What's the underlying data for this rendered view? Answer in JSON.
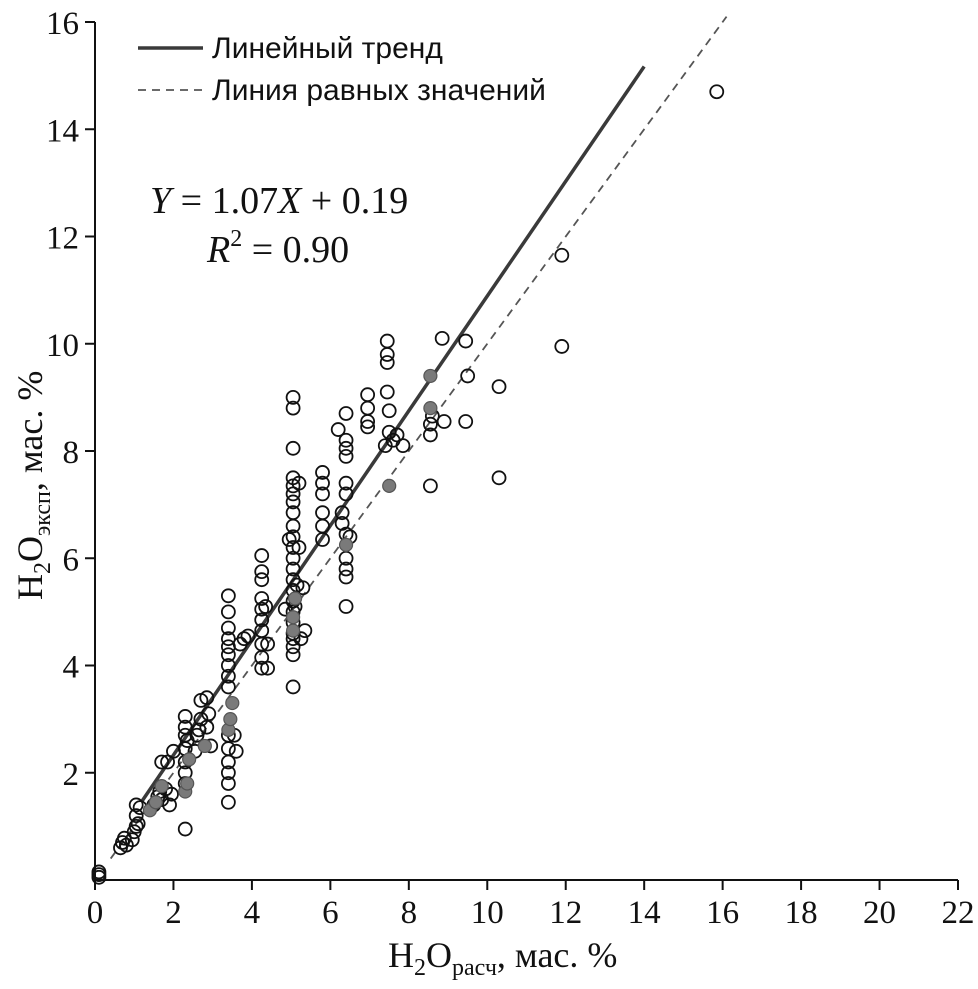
{
  "chart_data": {
    "type": "scatter",
    "xlabel": {
      "main": "H",
      "sub1": "2",
      "mid": "O",
      "sub2": "расч",
      "tail": ", мас. %"
    },
    "ylabel": {
      "main": "H",
      "sub1": "2",
      "mid": "O",
      "sub2": "эксп",
      "tail": ", мас. %"
    },
    "xlim": [
      0,
      22
    ],
    "ylim": [
      0,
      16
    ],
    "x_ticks": [
      0,
      2,
      4,
      6,
      8,
      10,
      12,
      14,
      16,
      18,
      20,
      22
    ],
    "y_ticks": [
      2,
      4,
      6,
      8,
      10,
      12,
      14,
      16
    ],
    "grid": false,
    "legend": {
      "placement": "top-left",
      "items": [
        {
          "label": "Линейный тренд",
          "style": "solid",
          "color": "#3a3a3a"
        },
        {
          "label": "Линия равных значений",
          "style": "dashed",
          "color": "#555555"
        }
      ]
    },
    "annotation": {
      "equation": {
        "y": "Y",
        "eq1": " = 1.07",
        "x": "X",
        "eq2": " + 0.19"
      },
      "r2": {
        "r": "R",
        "sup": "2",
        "eq": " = 0.90"
      }
    },
    "trend_line": {
      "slope": 1.07,
      "intercept": 0.19,
      "x_range": [
        1.2,
        14.0
      ]
    },
    "equal_line": {
      "x_range": [
        0.4,
        16.1
      ]
    },
    "series": [
      {
        "kind": "open",
        "color": "#111111",
        "points": [
          [
            0.1,
            0.05
          ],
          [
            0.1,
            0.1
          ],
          [
            0.1,
            0.15
          ],
          [
            0.65,
            0.6
          ],
          [
            0.7,
            0.7
          ],
          [
            0.75,
            0.78
          ],
          [
            0.8,
            0.65
          ],
          [
            0.95,
            0.75
          ],
          [
            1.0,
            0.9
          ],
          [
            1.05,
            1.0
          ],
          [
            1.05,
            1.2
          ],
          [
            1.05,
            1.4
          ],
          [
            1.1,
            1.05
          ],
          [
            1.15,
            1.35
          ],
          [
            1.5,
            1.4
          ],
          [
            1.6,
            1.55
          ],
          [
            1.65,
            1.65
          ],
          [
            1.7,
            1.5
          ],
          [
            1.7,
            2.2
          ],
          [
            1.8,
            1.7
          ],
          [
            1.85,
            2.2
          ],
          [
            1.9,
            1.4
          ],
          [
            1.95,
            1.6
          ],
          [
            2.0,
            2.4
          ],
          [
            2.3,
            0.95
          ],
          [
            2.3,
            1.8
          ],
          [
            2.3,
            2.0
          ],
          [
            2.3,
            2.2
          ],
          [
            2.3,
            2.45
          ],
          [
            2.3,
            2.7
          ],
          [
            2.3,
            2.85
          ],
          [
            2.3,
            3.05
          ],
          [
            2.35,
            2.6
          ],
          [
            2.55,
            2.4
          ],
          [
            2.6,
            2.7
          ],
          [
            2.65,
            2.8
          ],
          [
            2.7,
            3.0
          ],
          [
            2.7,
            3.35
          ],
          [
            2.85,
            3.4
          ],
          [
            2.85,
            2.85
          ],
          [
            2.9,
            3.1
          ],
          [
            2.95,
            2.5
          ],
          [
            3.4,
            1.45
          ],
          [
            3.4,
            1.8
          ],
          [
            3.4,
            2.0
          ],
          [
            3.4,
            2.2
          ],
          [
            3.4,
            2.45
          ],
          [
            3.4,
            2.7
          ],
          [
            3.4,
            3.6
          ],
          [
            3.4,
            3.8
          ],
          [
            3.4,
            4.0
          ],
          [
            3.4,
            4.2
          ],
          [
            3.4,
            4.35
          ],
          [
            3.4,
            4.5
          ],
          [
            3.4,
            4.7
          ],
          [
            3.4,
            5.0
          ],
          [
            3.4,
            5.3
          ],
          [
            3.55,
            2.7
          ],
          [
            3.6,
            2.4
          ],
          [
            3.7,
            4.4
          ],
          [
            3.8,
            4.5
          ],
          [
            3.9,
            4.55
          ],
          [
            4.25,
            3.95
          ],
          [
            4.25,
            4.15
          ],
          [
            4.25,
            4.4
          ],
          [
            4.25,
            4.65
          ],
          [
            4.25,
            4.85
          ],
          [
            4.25,
            5.05
          ],
          [
            4.25,
            5.25
          ],
          [
            4.25,
            5.6
          ],
          [
            4.25,
            5.75
          ],
          [
            4.25,
            6.05
          ],
          [
            4.4,
            3.95
          ],
          [
            4.4,
            4.4
          ],
          [
            4.35,
            5.1
          ],
          [
            4.85,
            5.05
          ],
          [
            4.95,
            6.35
          ],
          [
            5.05,
            3.6
          ],
          [
            5.05,
            4.2
          ],
          [
            5.05,
            4.35
          ],
          [
            5.05,
            4.5
          ],
          [
            5.05,
            4.6
          ],
          [
            5.05,
            4.8
          ],
          [
            5.05,
            5.0
          ],
          [
            5.05,
            5.2
          ],
          [
            5.05,
            5.4
          ],
          [
            5.05,
            5.6
          ],
          [
            5.05,
            5.8
          ],
          [
            5.05,
            6.0
          ],
          [
            5.05,
            6.2
          ],
          [
            5.05,
            6.4
          ],
          [
            5.05,
            6.6
          ],
          [
            5.05,
            6.85
          ],
          [
            5.05,
            7.05
          ],
          [
            5.05,
            7.2
          ],
          [
            5.05,
            7.35
          ],
          [
            5.05,
            7.5
          ],
          [
            5.05,
            8.05
          ],
          [
            5.05,
            8.8
          ],
          [
            5.05,
            9.0
          ],
          [
            5.1,
            5.1
          ],
          [
            5.15,
            5.5
          ],
          [
            5.2,
            6.2
          ],
          [
            5.2,
            7.4
          ],
          [
            5.25,
            4.5
          ],
          [
            5.3,
            5.45
          ],
          [
            5.35,
            4.65
          ],
          [
            5.8,
            6.35
          ],
          [
            5.8,
            6.6
          ],
          [
            5.8,
            6.85
          ],
          [
            5.8,
            7.2
          ],
          [
            5.8,
            7.4
          ],
          [
            5.8,
            7.6
          ],
          [
            6.3,
            6.65
          ],
          [
            6.3,
            6.85
          ],
          [
            6.2,
            8.4
          ],
          [
            6.4,
            5.1
          ],
          [
            6.4,
            5.65
          ],
          [
            6.4,
            5.8
          ],
          [
            6.4,
            6.0
          ],
          [
            6.4,
            6.45
          ],
          [
            6.4,
            7.2
          ],
          [
            6.4,
            7.4
          ],
          [
            6.4,
            7.9
          ],
          [
            6.4,
            8.05
          ],
          [
            6.4,
            8.2
          ],
          [
            6.4,
            8.7
          ],
          [
            6.5,
            6.4
          ],
          [
            6.95,
            8.45
          ],
          [
            6.95,
            8.55
          ],
          [
            6.95,
            8.8
          ],
          [
            6.95,
            9.05
          ],
          [
            7.4,
            8.1
          ],
          [
            7.45,
            9.1
          ],
          [
            7.45,
            9.65
          ],
          [
            7.45,
            9.8
          ],
          [
            7.45,
            10.05
          ],
          [
            7.5,
            8.35
          ],
          [
            7.5,
            8.75
          ],
          [
            7.6,
            8.2
          ],
          [
            7.7,
            8.3
          ],
          [
            7.85,
            8.1
          ],
          [
            8.55,
            7.35
          ],
          [
            8.55,
            8.3
          ],
          [
            8.55,
            8.5
          ],
          [
            8.6,
            8.65
          ],
          [
            8.85,
            10.1
          ],
          [
            8.9,
            8.55
          ],
          [
            9.45,
            8.55
          ],
          [
            9.45,
            10.05
          ],
          [
            9.5,
            9.4
          ],
          [
            10.3,
            7.5
          ],
          [
            10.3,
            9.2
          ],
          [
            11.9,
            9.95
          ],
          [
            11.9,
            11.65
          ],
          [
            15.85,
            14.7
          ]
        ]
      },
      {
        "kind": "filled",
        "color": "#7a7a7a",
        "points": [
          [
            1.4,
            1.3
          ],
          [
            1.55,
            1.45
          ],
          [
            1.7,
            1.75
          ],
          [
            2.3,
            1.65
          ],
          [
            2.35,
            1.8
          ],
          [
            2.4,
            2.25
          ],
          [
            2.8,
            2.5
          ],
          [
            3.4,
            2.8
          ],
          [
            3.45,
            3.0
          ],
          [
            3.5,
            3.3
          ],
          [
            5.05,
            4.65
          ],
          [
            5.05,
            4.9
          ],
          [
            5.1,
            5.25
          ],
          [
            6.4,
            6.25
          ],
          [
            7.5,
            7.35
          ],
          [
            8.55,
            8.8
          ],
          [
            8.55,
            9.4
          ]
        ]
      }
    ]
  }
}
